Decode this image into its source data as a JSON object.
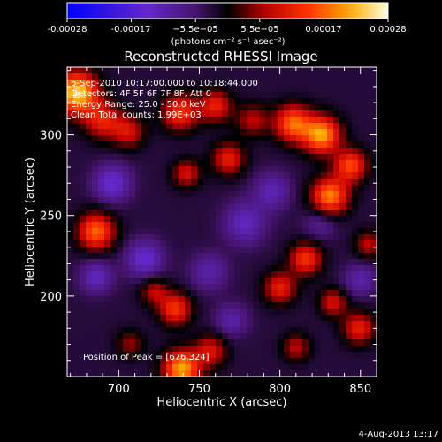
{
  "colorbar": {
    "ticks": [
      "-0.00028",
      "-0.00017",
      "−5.5e−05",
      "5.5e−05",
      "0.00017",
      "0.00028"
    ],
    "units_label": "(photons cm⁻² s⁻¹ asec⁻²)"
  },
  "chart_data": {
    "type": "heatmap",
    "title": "Reconstructed RHESSI Image",
    "xlabel": "Heliocentric X (arcsec)",
    "ylabel": "Heliocentric Y (arcsec)",
    "xlim": [
      668,
      860
    ],
    "ylim": [
      150,
      342
    ],
    "xticks": [
      700,
      750,
      800,
      850
    ],
    "yticks": [
      200,
      250,
      300
    ],
    "color_range": [
      -0.00028,
      0.00028
    ],
    "annotations": [
      "6-Sep-2010 10:17:00.000 to 10:18:44.000",
      "Detectors: 4F 5F 6F 7F 8F, Att 0",
      "Energy Range: 25.0 - 50.0 keV",
      "Clean    Total counts: 1.99E+03"
    ],
    "peak_label": "Position of Peak = [676,324]",
    "sources": [
      {
        "x": 674,
        "y": 326,
        "value": 0.00028,
        "sigma": 9
      },
      {
        "x": 690,
        "y": 309,
        "value": 0.00014,
        "sigma": 8
      },
      {
        "x": 706,
        "y": 302,
        "value": 0.00012,
        "sigma": 7
      },
      {
        "x": 738,
        "y": 314,
        "value": 0.00016,
        "sigma": 8
      },
      {
        "x": 760,
        "y": 318,
        "value": 0.00014,
        "sigma": 7
      },
      {
        "x": 783,
        "y": 309,
        "value": 0.0001,
        "sigma": 7
      },
      {
        "x": 808,
        "y": 307,
        "value": 0.0002,
        "sigma": 8
      },
      {
        "x": 826,
        "y": 300,
        "value": 0.00024,
        "sigma": 8
      },
      {
        "x": 844,
        "y": 281,
        "value": 0.00018,
        "sigma": 7
      },
      {
        "x": 831,
        "y": 262,
        "value": 0.00022,
        "sigma": 8
      },
      {
        "x": 742,
        "y": 276,
        "value": 0.00012,
        "sigma": 6
      },
      {
        "x": 768,
        "y": 285,
        "value": 0.00014,
        "sigma": 7
      },
      {
        "x": 686,
        "y": 240,
        "value": 0.0002,
        "sigma": 8
      },
      {
        "x": 816,
        "y": 223,
        "value": 0.00016,
        "sigma": 7
      },
      {
        "x": 800,
        "y": 205,
        "value": 0.00014,
        "sigma": 7
      },
      {
        "x": 833,
        "y": 196,
        "value": 0.00012,
        "sigma": 6
      },
      {
        "x": 849,
        "y": 180,
        "value": 0.00014,
        "sigma": 7
      },
      {
        "x": 735,
        "y": 192,
        "value": 0.00016,
        "sigma": 7
      },
      {
        "x": 722,
        "y": 203,
        "value": 0.0001,
        "sigma": 6
      },
      {
        "x": 757,
        "y": 166,
        "value": 0.00012,
        "sigma": 7
      },
      {
        "x": 739,
        "y": 155,
        "value": 0.00024,
        "sigma": 8
      },
      {
        "x": 707,
        "y": 170,
        "value": 8e-05,
        "sigma": 6
      },
      {
        "x": 810,
        "y": 168,
        "value": 0.0001,
        "sigma": 6
      },
      {
        "x": 855,
        "y": 232,
        "value": 0.0001,
        "sigma": 6
      },
      {
        "x": 778,
        "y": 245,
        "value": -0.0001,
        "sigma": 9
      },
      {
        "x": 696,
        "y": 270,
        "value": -0.00012,
        "sigma": 8
      },
      {
        "x": 686,
        "y": 212,
        "value": -0.0001,
        "sigma": 7
      },
      {
        "x": 716,
        "y": 223,
        "value": -0.00012,
        "sigma": 8
      },
      {
        "x": 756,
        "y": 215,
        "value": -8e-05,
        "sigma": 8
      },
      {
        "x": 795,
        "y": 265,
        "value": -9e-05,
        "sigma": 8
      },
      {
        "x": 850,
        "y": 210,
        "value": -8e-05,
        "sigma": 7
      },
      {
        "x": 770,
        "y": 185,
        "value": -8e-05,
        "sigma": 7
      },
      {
        "x": 825,
        "y": 245,
        "value": -6e-05,
        "sigma": 7
      }
    ],
    "baseline": -3e-05
  },
  "footer_date": "4-Aug-2013 13:17"
}
